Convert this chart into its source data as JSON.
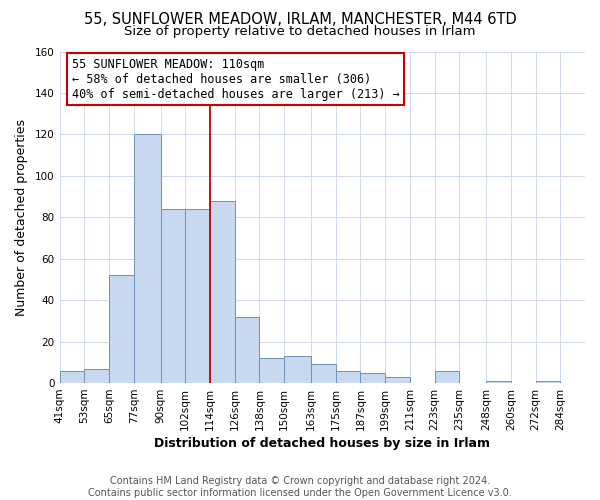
{
  "title": "55, SUNFLOWER MEADOW, IRLAM, MANCHESTER, M44 6TD",
  "subtitle": "Size of property relative to detached houses in Irlam",
  "xlabel": "Distribution of detached houses by size in Irlam",
  "ylabel": "Number of detached properties",
  "bar_left_edges": [
    41,
    53,
    65,
    77,
    90,
    102,
    114,
    126,
    138,
    150,
    163,
    175,
    187,
    199,
    211,
    223,
    235,
    248,
    260,
    272
  ],
  "bar_widths": [
    12,
    12,
    12,
    13,
    12,
    12,
    12,
    12,
    12,
    13,
    12,
    12,
    12,
    12,
    12,
    12,
    13,
    12,
    12,
    12
  ],
  "bar_heights": [
    6,
    7,
    52,
    120,
    84,
    84,
    88,
    32,
    12,
    13,
    9,
    6,
    5,
    3,
    0,
    6,
    0,
    1,
    0,
    1
  ],
  "bar_color": "#c8d8ee",
  "bar_edgecolor": "#7090b8",
  "vline_x": 114,
  "vline_color": "#cc0000",
  "annotation_line1": "55 SUNFLOWER MEADOW: 110sqm",
  "annotation_line2": "← 58% of detached houses are smaller (306)",
  "annotation_line3": "40% of semi-detached houses are larger (213) →",
  "annotation_box_edgecolor": "#cc0000",
  "xlim": [
    41,
    296
  ],
  "ylim": [
    0,
    160
  ],
  "yticks": [
    0,
    20,
    40,
    60,
    80,
    100,
    120,
    140,
    160
  ],
  "xtick_labels": [
    "41sqm",
    "53sqm",
    "65sqm",
    "77sqm",
    "90sqm",
    "102sqm",
    "114sqm",
    "126sqm",
    "138sqm",
    "150sqm",
    "163sqm",
    "175sqm",
    "187sqm",
    "199sqm",
    "211sqm",
    "223sqm",
    "235sqm",
    "248sqm",
    "260sqm",
    "272sqm",
    "284sqm"
  ],
  "xtick_positions": [
    41,
    53,
    65,
    77,
    90,
    102,
    114,
    126,
    138,
    150,
    163,
    175,
    187,
    199,
    211,
    223,
    235,
    248,
    260,
    272,
    284
  ],
  "footer_text": "Contains HM Land Registry data © Crown copyright and database right 2024.\nContains public sector information licensed under the Open Government Licence v3.0.",
  "bg_color": "#ffffff",
  "plot_bg_color": "#ffffff",
  "title_fontsize": 10.5,
  "subtitle_fontsize": 9.5,
  "axis_label_fontsize": 9,
  "tick_fontsize": 7.5,
  "footer_fontsize": 7,
  "annotation_fontsize": 8.5
}
